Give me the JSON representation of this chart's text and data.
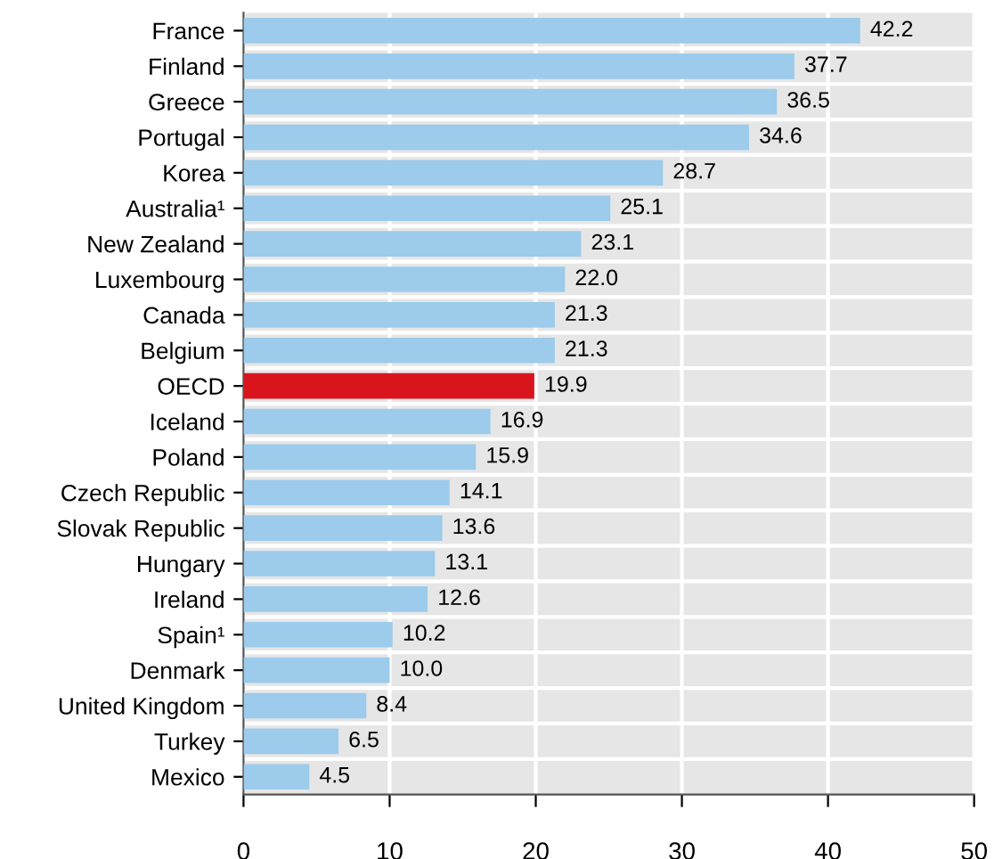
{
  "chart_data": {
    "type": "bar",
    "orientation": "horizontal",
    "categories": [
      "France",
      "Finland",
      "Greece",
      "Portugal",
      "Korea",
      "Australia¹",
      "New Zealand",
      "Luxembourg",
      "Canada",
      "Belgium",
      "OECD",
      "Iceland",
      "Poland",
      "Czech Republic",
      "Slovak Republic",
      "Hungary",
      "Ireland",
      "Spain¹",
      "Denmark",
      "United Kingdom",
      "Turkey",
      "Mexico"
    ],
    "values": [
      42.2,
      37.7,
      36.5,
      34.6,
      28.7,
      25.1,
      23.1,
      22.0,
      21.3,
      21.3,
      19.9,
      16.9,
      15.9,
      14.1,
      13.6,
      13.1,
      12.6,
      10.2,
      10.0,
      8.4,
      6.5,
      4.5
    ],
    "value_labels": [
      "42.2",
      "37.7",
      "36.5",
      "34.6",
      "28.7",
      "25.1",
      "23.1",
      "22.0",
      "21.3",
      "21.3",
      "19.9",
      "16.9",
      "15.9",
      "14.1",
      "13.6",
      "13.1",
      "12.6",
      "10.2",
      "10.0",
      "8.4",
      "6.5",
      "4.5"
    ],
    "colors": [
      "#9ccbeb",
      "#9ccbeb",
      "#9ccbeb",
      "#9ccbeb",
      "#9ccbeb",
      "#9ccbeb",
      "#9ccbeb",
      "#9ccbeb",
      "#9ccbeb",
      "#9ccbeb",
      "#d9141c",
      "#9ccbeb",
      "#9ccbeb",
      "#9ccbeb",
      "#9ccbeb",
      "#9ccbeb",
      "#9ccbeb",
      "#9ccbeb",
      "#9ccbeb",
      "#9ccbeb",
      "#9ccbeb",
      "#9ccbeb"
    ],
    "xlim": [
      0,
      50
    ],
    "xticks": [
      0,
      10,
      20,
      30,
      40,
      50
    ],
    "grid": "x"
  }
}
